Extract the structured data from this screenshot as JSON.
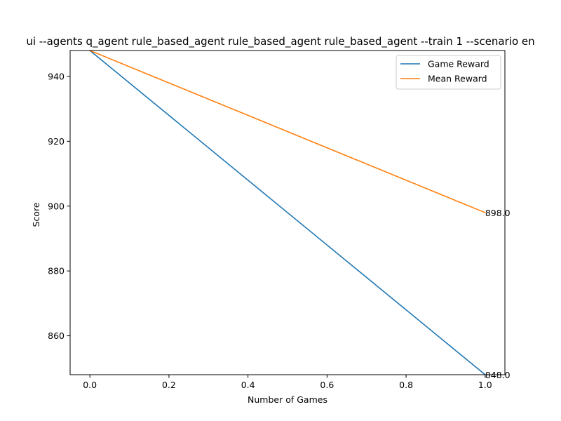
{
  "chart_data": {
    "type": "line",
    "title": "ui --agents q_agent rule_based_agent rule_based_agent rule_based_agent --train 1 --scenario en",
    "xlabel": "Number of Games",
    "ylabel": "Score",
    "xlim": [
      -0.05,
      1.05
    ],
    "ylim": [
      848,
      948
    ],
    "xticks": [
      0.0,
      0.2,
      0.4,
      0.6,
      0.8,
      1.0
    ],
    "xtick_labels": [
      "0.0",
      "0.2",
      "0.4",
      "0.6",
      "0.8",
      "1.0"
    ],
    "yticks": [
      860,
      880,
      900,
      920,
      940
    ],
    "ytick_labels": [
      "860",
      "880",
      "900",
      "920",
      "940"
    ],
    "grid": false,
    "legend_position": "top-right",
    "series": [
      {
        "name": "Game Reward",
        "color": "#1f77b4",
        "x": [
          0,
          1
        ],
        "y": [
          948,
          848
        ],
        "end_label": "848.0"
      },
      {
        "name": "Mean Reward",
        "color": "#ff7f0e",
        "x": [
          0,
          1
        ],
        "y": [
          948,
          898
        ],
        "end_label": "898.0"
      }
    ]
  }
}
